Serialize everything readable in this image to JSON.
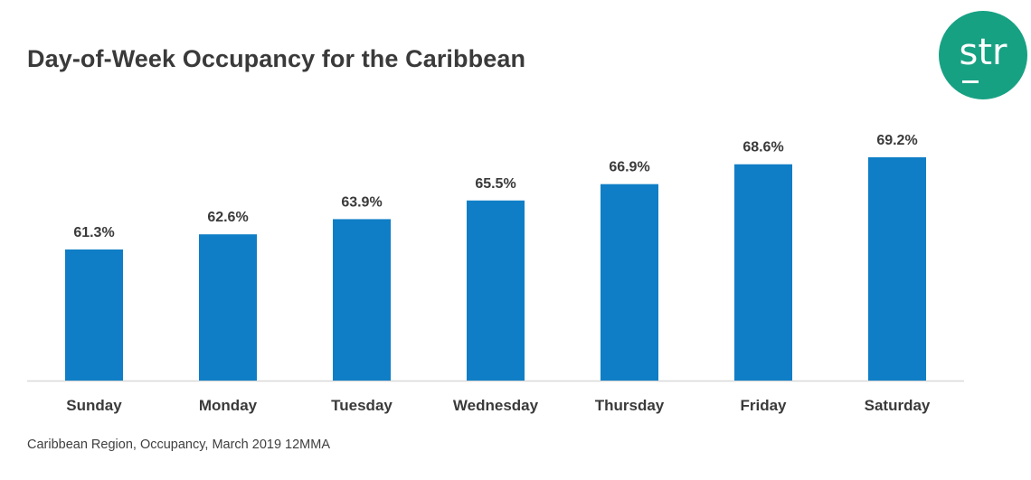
{
  "title": "Day-of-Week Occupancy for the Caribbean",
  "logo": {
    "text": "str",
    "color": "#17a183"
  },
  "source": "Caribbean Region, Occupancy, March 2019 12MMA",
  "colors": {
    "bar": "#0f7ec6",
    "axis": "#d9d9d9",
    "label": "#3a3a3a"
  },
  "chart_data": {
    "type": "bar",
    "title": "Day-of-Week Occupancy for the Caribbean",
    "categories": [
      "Sunday",
      "Monday",
      "Tuesday",
      "Wednesday",
      "Thursday",
      "Friday",
      "Saturday"
    ],
    "values": [
      61.3,
      62.6,
      63.9,
      65.5,
      66.9,
      68.6,
      69.2
    ],
    "data_labels": [
      "61.3%",
      "62.6%",
      "63.9%",
      "65.5%",
      "66.9%",
      "68.6%",
      "69.2%"
    ],
    "xlabel": "",
    "ylabel": "",
    "grid": false,
    "legend": "none"
  }
}
